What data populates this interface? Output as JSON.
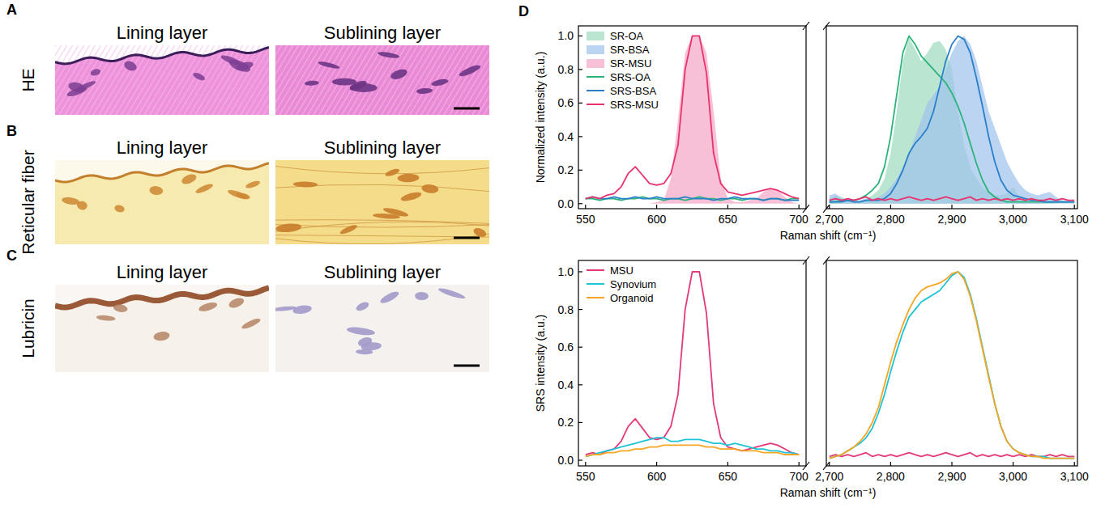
{
  "figure": {
    "panels": [
      {
        "letter": "A",
        "row_label": "HE",
        "columns": [
          "Lining layer",
          "Sublining layer"
        ]
      },
      {
        "letter": "B",
        "row_label": "Reticular fiber",
        "columns": [
          "Lining layer",
          "Sublining layer"
        ]
      },
      {
        "letter": "C",
        "row_label": "Lubricin",
        "columns": [
          "Lining layer",
          "Sublining layer"
        ]
      }
    ],
    "chart_panel": {
      "letter": "D"
    }
  },
  "chart_data": [
    {
      "type": "line",
      "x_label": "Raman shift (cm⁻¹)",
      "y_label": "Normalized intensity (a.u.)",
      "xlim": [
        545,
        3105
      ],
      "x_break": [
        705,
        2695
      ],
      "ylim": [
        -0.03,
        1.06
      ],
      "xticks": [
        550,
        600,
        650,
        700,
        {
          "value": 2700,
          "label": "2,700"
        },
        {
          "value": 2800,
          "label": "2,800"
        },
        {
          "value": 2900,
          "label": "2,900"
        },
        {
          "value": 3000,
          "label": "3,000"
        },
        {
          "value": 3100,
          "label": "3,100"
        }
      ],
      "yticks": [
        {
          "value": 0,
          "label": "0.0"
        },
        0.2,
        0.4,
        0.6,
        0.8,
        {
          "value": 1,
          "label": "1.0"
        }
      ],
      "legend": "top-left",
      "x": [
        550,
        555,
        560,
        565,
        570,
        575,
        580,
        585,
        590,
        595,
        600,
        605,
        610,
        615,
        620,
        625,
        630,
        635,
        640,
        645,
        650,
        655,
        660,
        665,
        670,
        675,
        680,
        685,
        690,
        695,
        700,
        2700,
        2710,
        2720,
        2730,
        2740,
        2750,
        2760,
        2770,
        2780,
        2790,
        2800,
        2810,
        2820,
        2830,
        2840,
        2850,
        2860,
        2870,
        2880,
        2890,
        2900,
        2910,
        2920,
        2930,
        2940,
        2950,
        2960,
        2970,
        2980,
        2990,
        3000,
        3010,
        3020,
        3030,
        3040,
        3050,
        3060,
        3070,
        3080,
        3090,
        3100
      ],
      "series": [
        {
          "name": "SR-OA",
          "type": "area",
          "color": "#9fdcbf",
          "values": [
            null,
            null,
            null,
            null,
            null,
            null,
            null,
            null,
            null,
            null,
            null,
            null,
            null,
            null,
            null,
            null,
            null,
            null,
            null,
            null,
            null,
            null,
            null,
            null,
            null,
            null,
            null,
            null,
            null,
            null,
            null,
            0.03,
            0.05,
            0.04,
            0.02,
            0.01,
            0.02,
            0.03,
            0.05,
            0.08,
            0.15,
            0.3,
            0.55,
            0.85,
            0.99,
            0.92,
            0.85,
            0.9,
            0.96,
            0.97,
            0.92,
            0.8,
            0.55,
            0.35,
            0.22,
            0.15,
            0.1,
            0.07,
            0.05,
            0.05,
            0.06,
            0.1,
            0.04,
            0.02,
            0.01,
            0.01,
            0.01,
            0.01,
            0,
            0,
            0,
            0
          ]
        },
        {
          "name": "SR-BSA",
          "type": "area",
          "color": "#9fc4ec",
          "values": [
            null,
            null,
            null,
            null,
            null,
            null,
            null,
            null,
            null,
            null,
            null,
            null,
            null,
            null,
            null,
            null,
            null,
            null,
            null,
            null,
            null,
            null,
            null,
            null,
            null,
            null,
            null,
            null,
            null,
            null,
            null,
            0.05,
            0.06,
            0.03,
            0.02,
            0.02,
            0.02,
            0.03,
            0.03,
            0.04,
            0.06,
            0.1,
            0.15,
            0.22,
            0.3,
            0.4,
            0.5,
            0.6,
            0.65,
            0.7,
            0.8,
            0.9,
            0.97,
            1.0,
            0.95,
            0.85,
            0.7,
            0.55,
            0.45,
            0.35,
            0.25,
            0.18,
            0.12,
            0.08,
            0.06,
            0.05,
            0.06,
            0.07,
            0.04,
            0.02,
            0.01,
            0.01
          ]
        },
        {
          "name": "SR-MSU",
          "type": "area",
          "color": "#f5a8c6",
          "values": [
            0,
            0,
            0,
            0,
            0,
            0,
            0,
            0,
            0,
            0,
            0.01,
            0.02,
            0.15,
            0.5,
            0.9,
            1.0,
            1.0,
            0.9,
            0.55,
            0.15,
            0.03,
            0.01,
            0.01,
            0.02,
            0.03,
            0.07,
            0.09,
            0.08,
            0.04,
            0.01,
            0,
            null,
            null,
            null,
            null,
            null,
            null,
            null,
            null,
            null,
            null,
            null,
            null,
            null,
            null,
            null,
            null,
            null,
            null,
            null,
            null,
            null,
            null,
            null,
            null,
            null,
            null,
            null,
            null,
            null,
            null,
            null,
            null,
            null,
            null,
            null,
            null,
            null,
            null,
            null,
            null,
            null
          ]
        },
        {
          "name": "SRS-OA",
          "type": "line",
          "color": "#2bb47a",
          "values": [
            0.03,
            0.03,
            0.02,
            0.03,
            0.03,
            0.02,
            0.03,
            0.03,
            0.04,
            0.03,
            0.03,
            0.02,
            0.03,
            0.03,
            0.02,
            0.03,
            0.04,
            0.03,
            0.03,
            0.02,
            0.03,
            0.03,
            0.02,
            0.03,
            0.03,
            0.02,
            0.03,
            0.03,
            0.02,
            0.03,
            0.03,
            0.01,
            0.01,
            0.02,
            0.02,
            0.02,
            0.03,
            0.05,
            0.08,
            0.12,
            0.22,
            0.4,
            0.65,
            0.9,
            1.0,
            0.95,
            0.88,
            0.84,
            0.8,
            0.76,
            0.72,
            0.66,
            0.58,
            0.48,
            0.36,
            0.24,
            0.14,
            0.07,
            0.04,
            0.02,
            0.01,
            0.01,
            0.01,
            0.01,
            0.01,
            0.01,
            0.01,
            0.01,
            0.01,
            0.01,
            0.01,
            0.01
          ]
        },
        {
          "name": "SRS-BSA",
          "type": "line",
          "color": "#2a7fca",
          "values": [
            0.03,
            0.04,
            0.03,
            0.03,
            0.04,
            0.03,
            0.03,
            0.04,
            0.03,
            0.03,
            0.04,
            0.03,
            0.03,
            0.03,
            0.04,
            0.03,
            0.03,
            0.03,
            0.02,
            0.03,
            0.03,
            0.04,
            0.03,
            0.03,
            0.03,
            0.02,
            0.03,
            0.03,
            0.02,
            0.02,
            0.02,
            0.01,
            0.01,
            0.01,
            0.02,
            0.01,
            0.01,
            0.02,
            0.02,
            0.02,
            0.03,
            0.06,
            0.12,
            0.2,
            0.3,
            0.36,
            0.4,
            0.45,
            0.55,
            0.7,
            0.85,
            0.95,
            1.0,
            0.98,
            0.9,
            0.75,
            0.58,
            0.4,
            0.25,
            0.14,
            0.08,
            0.05,
            0.04,
            0.03,
            0.02,
            0.02,
            0.01,
            0.01,
            0.01,
            0.01,
            0.01,
            0.01
          ]
        },
        {
          "name": "SRS-MSU",
          "type": "line",
          "color": "#e8336e",
          "values": [
            0.03,
            0.04,
            0.03,
            0.05,
            0.06,
            0.1,
            0.18,
            0.22,
            0.17,
            0.12,
            0.11,
            0.12,
            0.18,
            0.35,
            0.8,
            1.0,
            1.0,
            0.78,
            0.3,
            0.12,
            0.07,
            0.06,
            0.05,
            0.06,
            0.07,
            0.08,
            0.09,
            0.08,
            0.06,
            0.04,
            0.03,
            0.02,
            0.03,
            0.02,
            0.03,
            0.02,
            0.03,
            0.04,
            0.02,
            0.03,
            0.02,
            0.03,
            0.02,
            0.03,
            0.04,
            0.03,
            0.02,
            0.03,
            0.02,
            0.03,
            0.04,
            0.03,
            0.02,
            0.03,
            0.04,
            0.02,
            0.03,
            0.02,
            0.03,
            0.02,
            0.03,
            0.02,
            0.03,
            0.02,
            0.03,
            0.02,
            0.02,
            0.03,
            0.02,
            0.03,
            0.02,
            0.02
          ]
        }
      ]
    },
    {
      "type": "line",
      "x_label": "Raman shift (cm⁻¹)",
      "y_label": "SRS intensity (a.u.)",
      "xlim": [
        545,
        3105
      ],
      "x_break": [
        705,
        2695
      ],
      "ylim": [
        -0.03,
        1.06
      ],
      "xticks": [
        550,
        600,
        650,
        700,
        {
          "value": 2700,
          "label": "2,700"
        },
        {
          "value": 2800,
          "label": "2,800"
        },
        {
          "value": 2900,
          "label": "2,900"
        },
        {
          "value": 3000,
          "label": "3,000"
        },
        {
          "value": 3100,
          "label": "3,100"
        }
      ],
      "yticks": [
        {
          "value": 0,
          "label": "0.0"
        },
        0.2,
        0.4,
        0.6,
        0.8,
        {
          "value": 1,
          "label": "1.0"
        }
      ],
      "legend": "top-left",
      "x": [
        550,
        555,
        560,
        565,
        570,
        575,
        580,
        585,
        590,
        595,
        600,
        605,
        610,
        615,
        620,
        625,
        630,
        635,
        640,
        645,
        650,
        655,
        660,
        665,
        670,
        675,
        680,
        685,
        690,
        695,
        700,
        2700,
        2710,
        2720,
        2730,
        2740,
        2750,
        2760,
        2770,
        2780,
        2790,
        2800,
        2810,
        2820,
        2830,
        2840,
        2850,
        2860,
        2870,
        2880,
        2890,
        2900,
        2910,
        2920,
        2930,
        2940,
        2950,
        2960,
        2970,
        2980,
        2990,
        3000,
        3010,
        3020,
        3030,
        3040,
        3050,
        3060,
        3070,
        3080,
        3090,
        3100
      ],
      "series": [
        {
          "name": "MSU",
          "type": "line",
          "color": "#e2397a",
          "values": [
            0.03,
            0.04,
            0.03,
            0.05,
            0.06,
            0.1,
            0.18,
            0.22,
            0.17,
            0.12,
            0.11,
            0.12,
            0.18,
            0.35,
            0.8,
            1.0,
            1.0,
            0.78,
            0.3,
            0.12,
            0.07,
            0.06,
            0.05,
            0.06,
            0.07,
            0.08,
            0.09,
            0.08,
            0.06,
            0.04,
            0.03,
            0.02,
            0.03,
            0.02,
            0.03,
            0.02,
            0.03,
            0.04,
            0.02,
            0.03,
            0.02,
            0.03,
            0.02,
            0.03,
            0.04,
            0.03,
            0.02,
            0.03,
            0.02,
            0.03,
            0.04,
            0.03,
            0.02,
            0.03,
            0.04,
            0.02,
            0.03,
            0.02,
            0.03,
            0.02,
            0.03,
            0.02,
            0.03,
            0.02,
            0.03,
            0.02,
            0.02,
            0.03,
            0.02,
            0.03,
            0.02,
            0.02
          ]
        },
        {
          "name": "Synovium",
          "type": "line",
          "color": "#1fc3d6",
          "values": [
            0.02,
            0.03,
            0.04,
            0.05,
            0.06,
            0.07,
            0.08,
            0.09,
            0.1,
            0.11,
            0.12,
            0.12,
            0.1,
            0.1,
            0.11,
            0.11,
            0.11,
            0.1,
            0.09,
            0.09,
            0.08,
            0.09,
            0.08,
            0.07,
            0.06,
            0.06,
            0.05,
            0.05,
            0.04,
            0.04,
            0.03,
            0.01,
            0.02,
            0.03,
            0.05,
            0.07,
            0.09,
            0.12,
            0.17,
            0.25,
            0.35,
            0.47,
            0.58,
            0.68,
            0.76,
            0.8,
            0.84,
            0.86,
            0.88,
            0.9,
            0.94,
            0.98,
            1.0,
            0.97,
            0.88,
            0.75,
            0.6,
            0.45,
            0.3,
            0.18,
            0.1,
            0.06,
            0.04,
            0.03,
            0.02,
            0.02,
            0.02,
            0.01,
            0.01,
            0.01,
            0.01,
            0.01
          ]
        },
        {
          "name": "Organoid",
          "type": "line",
          "color": "#f5a623",
          "values": [
            0.02,
            0.03,
            0.03,
            0.04,
            0.04,
            0.05,
            0.05,
            0.06,
            0.06,
            0.07,
            0.07,
            0.08,
            0.08,
            0.08,
            0.08,
            0.08,
            0.08,
            0.07,
            0.07,
            0.06,
            0.06,
            0.06,
            0.05,
            0.05,
            0.05,
            0.04,
            0.04,
            0.04,
            0.03,
            0.03,
            0.03,
            0.01,
            0.02,
            0.03,
            0.05,
            0.07,
            0.1,
            0.14,
            0.2,
            0.28,
            0.4,
            0.52,
            0.63,
            0.72,
            0.8,
            0.86,
            0.9,
            0.92,
            0.93,
            0.94,
            0.96,
            0.99,
            1.0,
            0.96,
            0.87,
            0.74,
            0.59,
            0.44,
            0.3,
            0.18,
            0.1,
            0.06,
            0.04,
            0.03,
            0.02,
            0.02,
            0.01,
            0.01,
            0.01,
            0.01,
            0.01,
            0.01
          ]
        }
      ]
    }
  ]
}
